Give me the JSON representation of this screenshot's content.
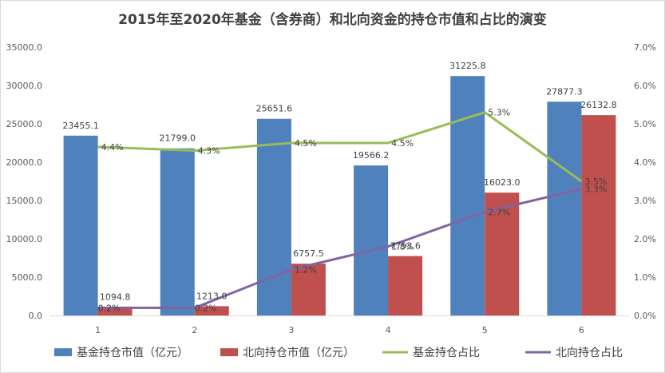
{
  "chart_data": {
    "type": "bar+line",
    "title": "2015年至2020年基金（含券商）和北向资金的持仓市值和占比的演变",
    "categories": [
      "1",
      "2",
      "3",
      "4",
      "5",
      "6"
    ],
    "ylim": [
      0,
      35000
    ],
    "y_ticks": [
      "0.0",
      "5000.0",
      "10000.0",
      "15000.0",
      "20000.0",
      "25000.0",
      "30000.0",
      "35000.0"
    ],
    "y2lim": [
      0,
      7.0
    ],
    "y2_ticks": [
      "0.0%",
      "1.0%",
      "2.0%",
      "3.0%",
      "4.0%",
      "5.0%",
      "6.0%",
      "7.0%"
    ],
    "bar_series": [
      {
        "name": "基金持仓市值（亿元）",
        "color": "#4f81bd",
        "values": [
          23455.1,
          21799.0,
          25651.6,
          19566.2,
          31225.8,
          27877.3
        ],
        "labels": [
          "23455.1",
          "21799.0",
          "25651.6",
          "19566.2",
          "31225.8",
          "27877.3"
        ]
      },
      {
        "name": "北向持仓市值（亿元）",
        "color": "#c0504d",
        "values": [
          1094.8,
          1213.0,
          6757.5,
          7753.6,
          16023.0,
          26132.8
        ],
        "labels": [
          "1094.8",
          "1213.0",
          "6757.5",
          "7753.6",
          "16023.0",
          "26132.8"
        ]
      }
    ],
    "line_series": [
      {
        "name": "基金持仓占比",
        "color": "#9bbb59",
        "values": [
          4.4,
          4.3,
          4.5,
          4.5,
          5.3,
          3.5
        ],
        "labels": [
          "4.4%",
          "4.3%",
          "4.5%",
          "4.5%",
          "5.3%",
          "3.5%"
        ]
      },
      {
        "name": "北向持仓占比",
        "color": "#8064a2",
        "values": [
          0.2,
          0.2,
          1.2,
          1.8,
          2.7,
          3.3
        ],
        "labels": [
          "0.2%",
          "0.2%",
          "1.2%",
          "1.8%",
          "2.7%",
          "3.3%"
        ]
      }
    ],
    "legend_position": "bottom"
  }
}
